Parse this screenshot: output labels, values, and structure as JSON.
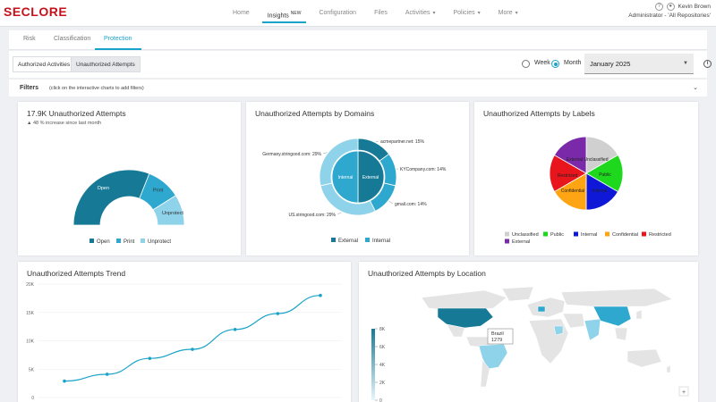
{
  "app": {
    "logo": "SECLORE"
  },
  "nav": {
    "items": [
      {
        "label": "Home"
      },
      {
        "label": "Insights",
        "badge": "NEW",
        "active": true
      },
      {
        "label": "Configuration"
      },
      {
        "label": "Files"
      },
      {
        "label": "Activities",
        "dropdown": true
      },
      {
        "label": "Policies",
        "dropdown": true
      },
      {
        "label": "More",
        "dropdown": true
      }
    ]
  },
  "user": {
    "name": "Kevin Brown",
    "role": "Administrator - 'All Repositories'"
  },
  "tabs": [
    "Risk",
    "Classification",
    "Protection"
  ],
  "subtabs": [
    "Authorized Activities",
    "Unauthorized Attempts"
  ],
  "period": {
    "week_label": "Week",
    "month_label": "Month",
    "selected": "month",
    "value": "January 2025"
  },
  "filters": {
    "title": "Filters",
    "hint": "(click on the interactive charts to add filters)"
  },
  "colors": {
    "accent": "#1aa3c8",
    "dark_teal": "#167a96",
    "mid_teal": "#2ea8cf",
    "light_teal": "#8fd3ea"
  },
  "chart_data": [
    {
      "type": "pie",
      "variant": "half-donut",
      "title": "17.9K Unauthorized Attempts",
      "subtitle": "48 % increase since last month",
      "categories": [
        "Open",
        "Print",
        "Unprotect"
      ],
      "values": [
        62,
        20,
        18
      ],
      "legend": [
        "Open",
        "Print",
        "Unprotect"
      ]
    },
    {
      "type": "pie",
      "variant": "nested-donut",
      "title": "Unauthorized Attempts by Domains",
      "inner": {
        "categories": [
          "External",
          "Internal"
        ],
        "values": [
          50,
          50
        ]
      },
      "outer": {
        "categories": [
          "acmepartner.net",
          "KYCompany.com",
          "gmail.com",
          "US.stringood.com",
          "Germany.stringood.com"
        ],
        "values": [
          15,
          14,
          14,
          29,
          29
        ],
        "labels": [
          "acmepartner.net: 15%",
          "KYCompany.com: 14%",
          "gmail.com: 14%",
          "US.stringood.com: 29%",
          "Germany.stringood.com: 29%"
        ]
      },
      "legend": [
        "External",
        "Internal"
      ]
    },
    {
      "type": "pie",
      "title": "Unauthorized Attempts by Labels",
      "categories": [
        "Unclassified",
        "Public",
        "Internal",
        "Confidential",
        "Restricted",
        "External"
      ],
      "values": [
        16.7,
        16.7,
        16.6,
        16.7,
        16.6,
        16.7
      ],
      "colors": [
        "#d0d0d0",
        "#1ed81e",
        "#1018d8",
        "#ffa412",
        "#e8161c",
        "#7a2aa8"
      ],
      "slice_labels": [
        "Unclassified",
        "Public",
        "Internal",
        "Confidential",
        "Restricted",
        "External"
      ]
    },
    {
      "type": "line",
      "title": "Unauthorized Attempts Trend",
      "x": [
        1,
        2,
        3,
        4,
        5,
        6,
        7
      ],
      "values": [
        2900,
        4100,
        6900,
        8500,
        12000,
        14800,
        18000
      ],
      "ylim": [
        0,
        20000
      ],
      "yticks": [
        "0",
        "5K",
        "10K",
        "15K",
        "20K"
      ]
    },
    {
      "type": "map",
      "title": "Unauthorized Attempts by Location",
      "tooltip": {
        "label": "Brazil",
        "value": "1279"
      },
      "color_scale": {
        "ticks": [
          "0",
          "2K",
          "4K",
          "6K",
          "8K"
        ]
      }
    }
  ]
}
